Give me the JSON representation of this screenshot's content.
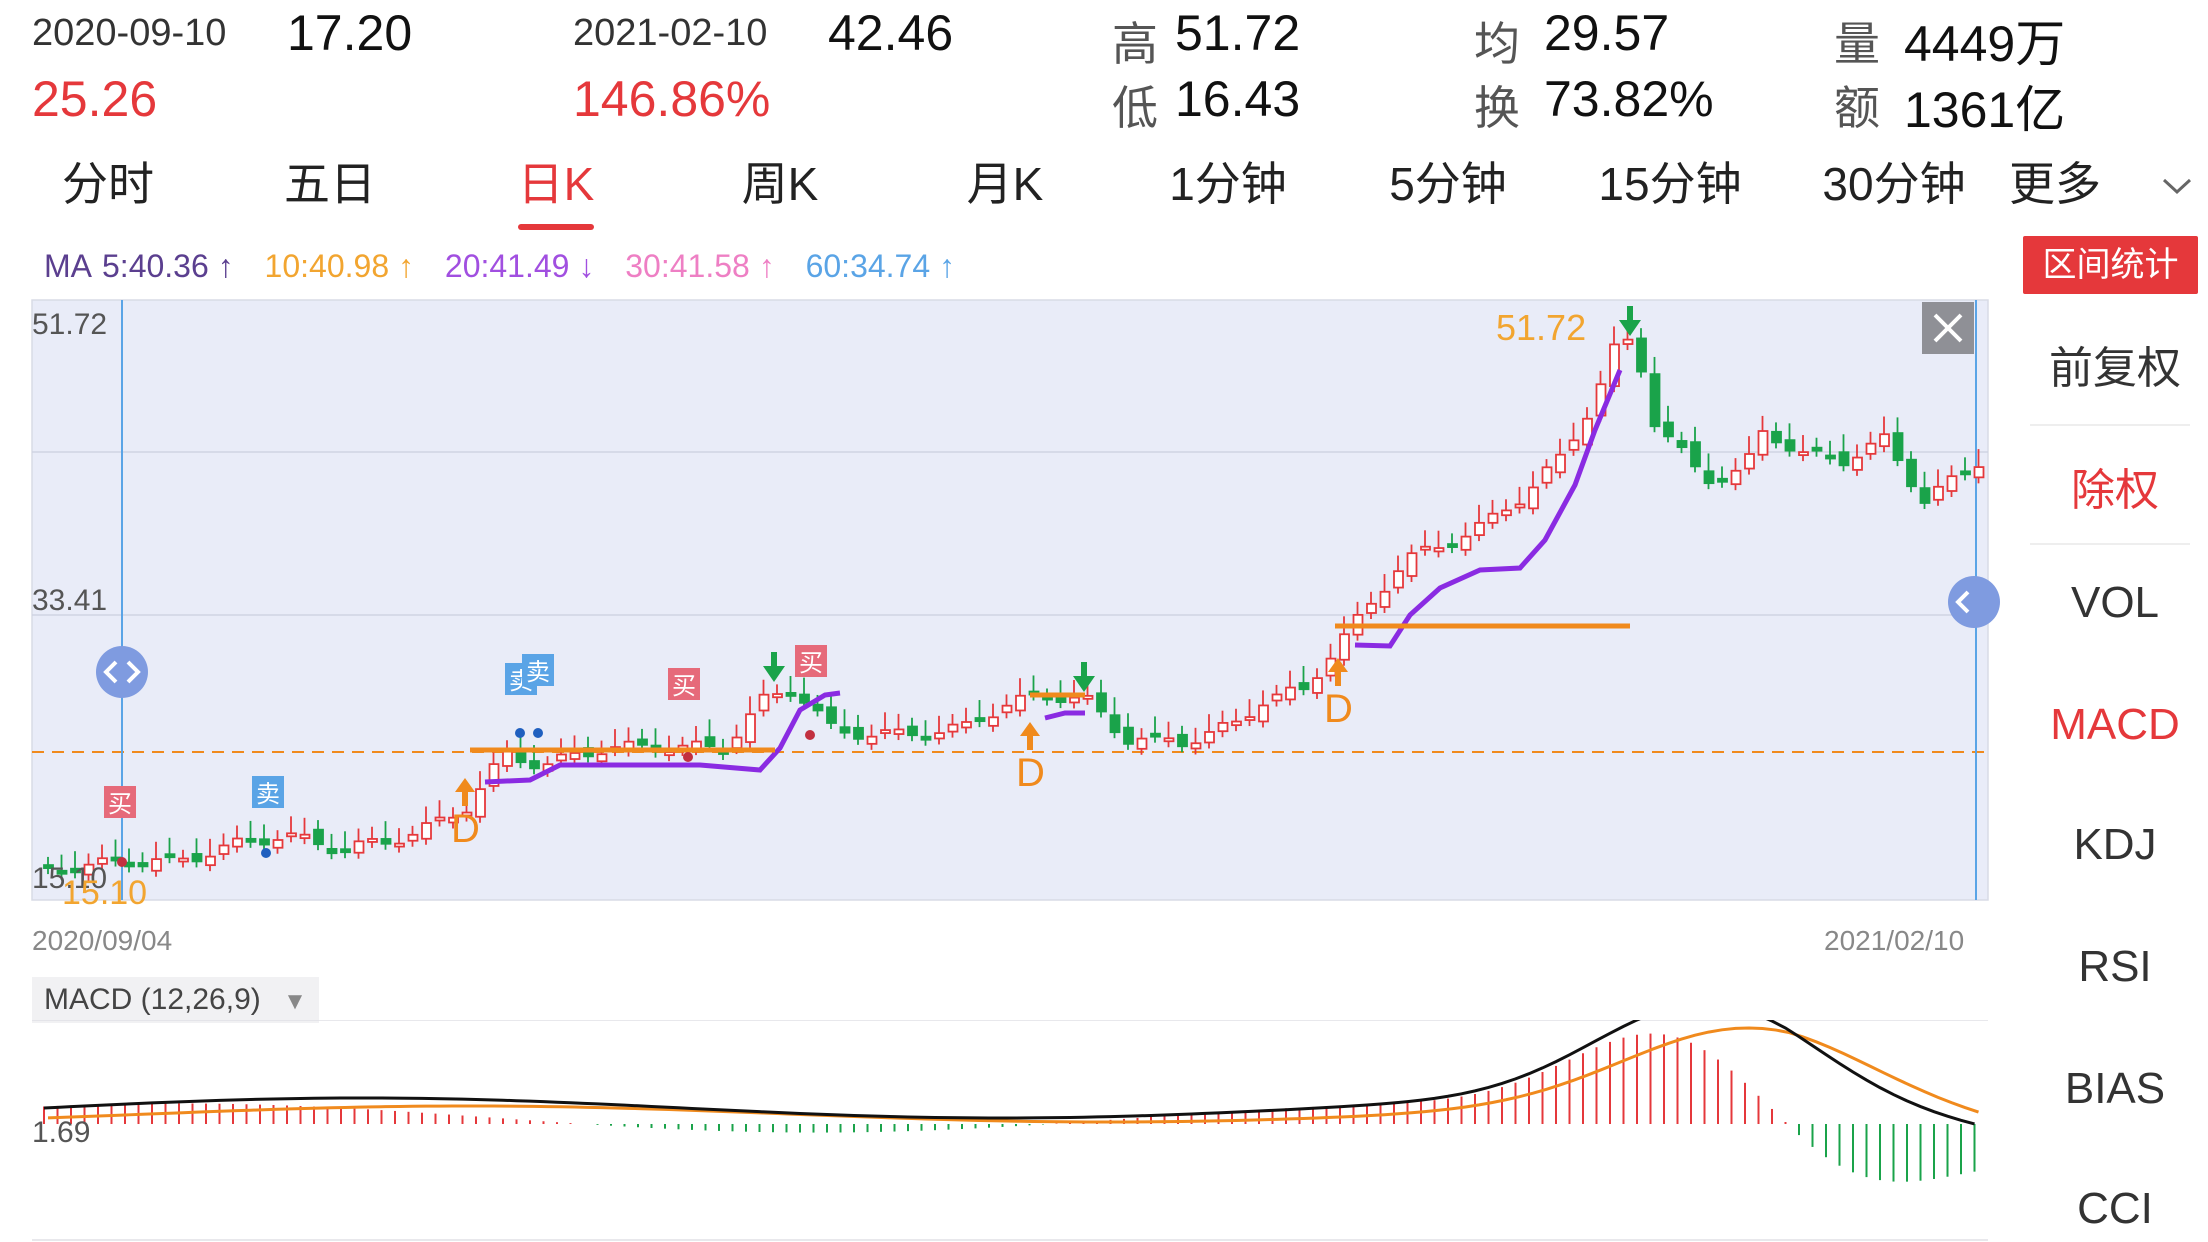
{
  "header": {
    "start_date": "2020-09-10",
    "start_price": "17.20",
    "change": "25.26",
    "end_date": "2021-02-10",
    "end_price": "42.46",
    "change_pct": "146.86%",
    "high_label": "高",
    "high_value": "51.72",
    "low_label": "低",
    "low_value": "16.43",
    "avg_label": "均",
    "avg_value": "29.57",
    "turnover_label": "换",
    "turnover_value": "73.82%",
    "volume_label": "量",
    "volume_value": "4449万",
    "amount_label": "额",
    "amount_value": "1361亿"
  },
  "tabs": [
    {
      "label": "分时"
    },
    {
      "label": "五日"
    },
    {
      "label": "日K"
    },
    {
      "label": "周K"
    },
    {
      "label": "月K"
    },
    {
      "label": "1分钟"
    },
    {
      "label": "5分钟"
    },
    {
      "label": "15分钟"
    },
    {
      "label": "30分钟"
    },
    {
      "label": "更多"
    }
  ],
  "active_tab": "日K",
  "ma": {
    "label": "MA",
    "ma5": "5:40.36",
    "ma10": "10:40.98",
    "ma20": "20:41.49",
    "ma30": "30:41.58",
    "ma60": "60:34.74",
    "colors": {
      "ma5": "#5b3f8f",
      "ma10": "#f2a530",
      "ma20": "#a14fe0",
      "ma30": "#ee7fc4",
      "ma60": "#5aa4e6"
    }
  },
  "side": {
    "stat_button": "区间统计",
    "items": [
      "前复权",
      "除权",
      "VOL",
      "MACD",
      "KDJ",
      "RSI",
      "BIAS",
      "CCI"
    ],
    "active": [
      "除权",
      "MACD"
    ]
  },
  "chart": {
    "y_top_label": "51.72",
    "y_mid_label": "33.41",
    "y_low_label": "15.10",
    "y_low_label_overlap": "15.10",
    "high_annotation": "51.72",
    "low_annotation": "15.10",
    "start_date_label": "2020/09/04",
    "end_date_label": "2021/02/10",
    "signal_buy": "买",
    "signal_sell": "卖",
    "d_label": "D",
    "colors": {
      "up": "#e5383b",
      "down": "#1aa34a",
      "background": "#e9ecf8",
      "ma_purple": "#8a2be2",
      "orange": "#f08a1d"
    }
  },
  "macd": {
    "title": "MACD (12,26,9)",
    "dropdown_icon": "triangle-down-icon",
    "y_label": "1.69",
    "colors": {
      "dif": "#111111",
      "dea": "#f08a1d",
      "pos": "#e5383b",
      "neg": "#1aa34a"
    }
  }
}
